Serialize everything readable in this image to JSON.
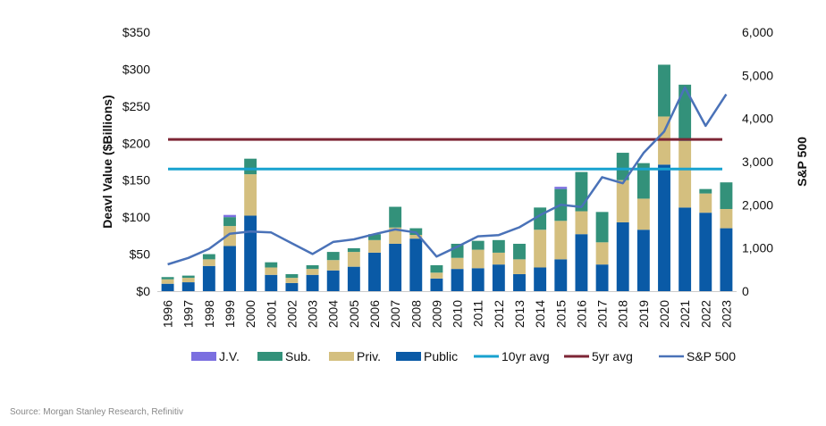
{
  "chart_data": {
    "type": "bar",
    "categories": [
      "1996",
      "1997",
      "1998",
      "1999",
      "2000",
      "2001",
      "2002",
      "2003",
      "2004",
      "2005",
      "2006",
      "2007",
      "2008",
      "2009",
      "2010",
      "2011",
      "2012",
      "2013",
      "2014",
      "2015",
      "2016",
      "2017",
      "2018",
      "2019",
      "2020",
      "2021",
      "2022",
      "2023"
    ],
    "series": [
      {
        "name": "Public",
        "kind": "stacked-bar",
        "axis": "left",
        "color": "#0a5aa6",
        "values": [
          10,
          12,
          34,
          61,
          102,
          22,
          11,
          22,
          28,
          33,
          52,
          64,
          71,
          17,
          30,
          31,
          36,
          23,
          32,
          43,
          77,
          36,
          93,
          83,
          171,
          113,
          106,
          85
        ]
      },
      {
        "name": "Priv.",
        "kind": "stacked-bar",
        "axis": "left",
        "color": "#d4bf7f",
        "values": [
          6,
          6,
          9,
          27,
          56,
          10,
          7,
          8,
          14,
          20,
          17,
          22,
          5,
          8,
          15,
          25,
          16,
          20,
          51,
          52,
          31,
          30,
          57,
          42,
          65,
          90,
          26,
          26
        ]
      },
      {
        "name": "Sub.",
        "kind": "stacked-bar",
        "axis": "left",
        "color": "#33917a",
        "values": [
          3,
          3,
          7,
          12,
          21,
          7,
          5,
          5,
          11,
          5,
          8,
          28,
          9,
          10,
          19,
          12,
          17,
          21,
          30,
          43,
          53,
          41,
          37,
          48,
          70,
          76,
          6,
          36
        ]
      },
      {
        "name": "J.V.",
        "kind": "stacked-bar",
        "axis": "left",
        "color": "#7b6fe0",
        "values": [
          0,
          0,
          0,
          3,
          0,
          0,
          0,
          0,
          0,
          0,
          0,
          0,
          0,
          0,
          0,
          0,
          0,
          0,
          0,
          3,
          0,
          0,
          0,
          0,
          0,
          0,
          0,
          0
        ]
      },
      {
        "name": "10yr avg",
        "kind": "hline",
        "axis": "left",
        "color": "#18a2cf",
        "value": 165
      },
      {
        "name": "5yr avg",
        "kind": "hline",
        "axis": "left",
        "color": "#7d2535",
        "value": 205
      },
      {
        "name": "S&P 500",
        "kind": "line",
        "axis": "right",
        "color": "#4a72b8",
        "values": [
          620,
          770,
          980,
          1330,
          1380,
          1360,
          1110,
          860,
          1140,
          1200,
          1320,
          1430,
          1360,
          800,
          1030,
          1270,
          1300,
          1480,
          1760,
          2000,
          1950,
          2640,
          2500,
          3200,
          3700,
          4720,
          3830,
          4560
        ]
      }
    ],
    "legend_order": [
      "J.V.",
      "Sub.",
      "Priv.",
      "Public",
      "10yr avg",
      "5yr avg",
      "S&P 500"
    ],
    "legend_position": "bottom",
    "ylabel": "Deavl Value ($Billions)",
    "y2label": "S&P 500",
    "ylim": [
      0,
      350
    ],
    "y2lim": [
      0,
      6000
    ],
    "yticks": [
      "$0",
      "$50",
      "$100",
      "$150",
      "$200",
      "$250",
      "$300",
      "$350"
    ],
    "y2ticks": [
      "0",
      "1,000",
      "2,000",
      "3,000",
      "4,000",
      "5,000",
      "6,000"
    ],
    "grid": false
  },
  "source": "Source: Morgan Stanley Research, Refinitiv"
}
